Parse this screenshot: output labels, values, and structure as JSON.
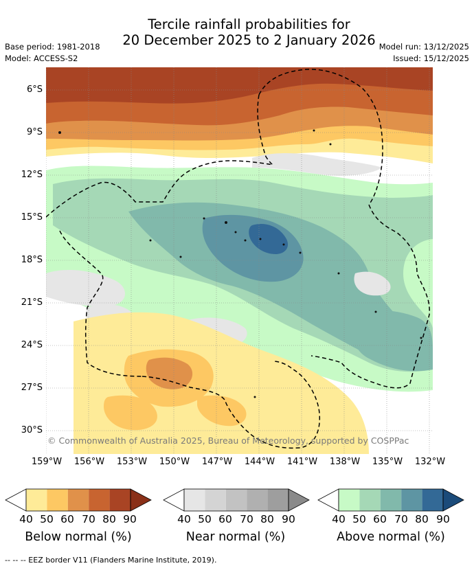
{
  "title": {
    "line1": "Tercile rainfall probabilities for",
    "line2": "20 December 2025 to 2 January 2026"
  },
  "info": {
    "base_period": "Base period: 1981-2018",
    "model": "Model: ACCESS-S2",
    "model_run": "Model run: 13/12/2025",
    "issued": "Issued: 15/12/2025"
  },
  "map": {
    "y_ticks": [
      "6°S",
      "9°S",
      "12°S",
      "15°S",
      "18°S",
      "21°S",
      "24°S",
      "27°S",
      "30°S"
    ],
    "x_ticks": [
      "159°W",
      "156°W",
      "153°W",
      "150°W",
      "147°W",
      "144°W",
      "141°W",
      "138°W",
      "135°W",
      "132°W"
    ],
    "copyright": "© Commonwealth of Australia 2025, Bureau of Meteorology, supported by COSPPac"
  },
  "colorbars": [
    {
      "label": "Below normal (%)",
      "ticks": [
        "40",
        "50",
        "60",
        "70",
        "80",
        "90"
      ],
      "colors": [
        "#ffffff",
        "#feeb98",
        "#fdc863",
        "#e0914a",
        "#c86430",
        "#a94424",
        "#8a3018"
      ]
    },
    {
      "label": "Near normal (%)",
      "ticks": [
        "40",
        "50",
        "60",
        "70",
        "80",
        "90"
      ],
      "colors": [
        "#ffffff",
        "#e6e6e6",
        "#d4d4d4",
        "#c2c2c2",
        "#b0b0b0",
        "#9e9e9e",
        "#8a8a8a"
      ]
    },
    {
      "label": "Above normal (%)",
      "ticks": [
        "40",
        "50",
        "60",
        "70",
        "80",
        "90"
      ],
      "colors": [
        "#ffffff",
        "#c7fac6",
        "#a5d8b6",
        "#81b9ab",
        "#5e95a3",
        "#336996",
        "#1b4b7a"
      ]
    }
  ],
  "legend_note": "-- -- -- EEZ border V11 (Flanders Marine Institute, 2019)."
}
